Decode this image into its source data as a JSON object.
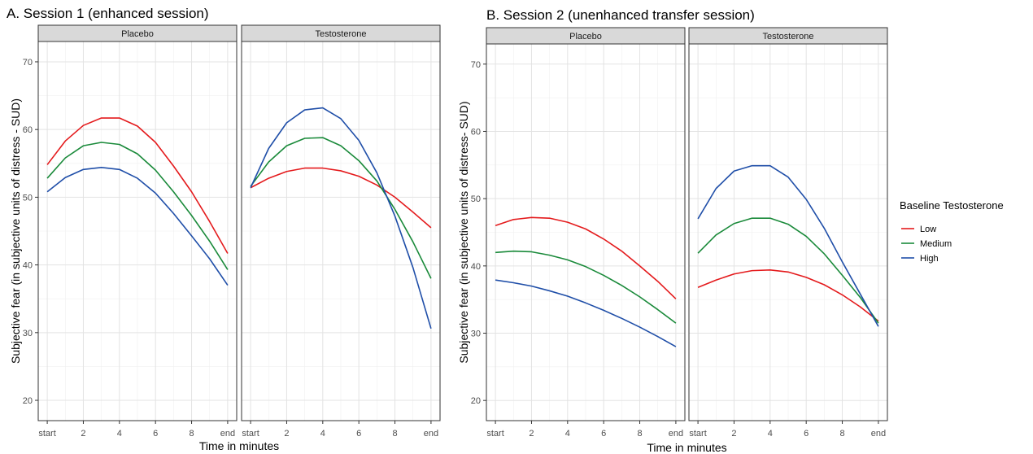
{
  "legend": {
    "title": "Baseline Testosterone",
    "placement": "right",
    "items": [
      {
        "label": "Low",
        "color": "#e41a1c"
      },
      {
        "label": "Medium",
        "color": "#1a8a3a"
      },
      {
        "label": "High",
        "color": "#1f4ea8"
      }
    ]
  },
  "chart_data": [
    {
      "type": "line",
      "title": "A. Session 1 (enhanced session)",
      "xlabel": "Time in minutes",
      "ylabel": "Subjective fear (in subjective units of distress - SUD)",
      "ylim": [
        17,
        73
      ],
      "yticks": [
        20,
        30,
        40,
        50,
        60,
        70
      ],
      "xlim": [
        -0.5,
        10.5
      ],
      "xticks": [
        0,
        2,
        4,
        6,
        8,
        10
      ],
      "xtick_labels": [
        "start",
        "2",
        "4",
        "6",
        "8",
        "end"
      ],
      "grid": true,
      "facets": [
        {
          "strip": "Placebo",
          "series": [
            {
              "name": "Low",
              "x": [
                0,
                1,
                2,
                3,
                4,
                5,
                6,
                7,
                8,
                9,
                10
              ],
              "y": [
                54.8,
                58.3,
                60.6,
                61.7,
                61.7,
                60.5,
                58.1,
                54.6,
                50.8,
                46.4,
                41.7
              ]
            },
            {
              "name": "Medium",
              "x": [
                0,
                1,
                2,
                3,
                4,
                5,
                6,
                7,
                8,
                9,
                10
              ],
              "y": [
                52.8,
                55.8,
                57.6,
                58.1,
                57.8,
                56.4,
                54.0,
                50.8,
                47.3,
                43.5,
                39.3
              ]
            },
            {
              "name": "High",
              "x": [
                0,
                1,
                2,
                3,
                4,
                5,
                6,
                7,
                8,
                9,
                10
              ],
              "y": [
                50.8,
                52.9,
                54.1,
                54.4,
                54.1,
                52.8,
                50.6,
                47.6,
                44.3,
                40.9,
                37.0
              ]
            }
          ]
        },
        {
          "strip": "Testosterone",
          "series": [
            {
              "name": "Low",
              "x": [
                0,
                1,
                2,
                3,
                4,
                5,
                6,
                7,
                8,
                9,
                10
              ],
              "y": [
                51.4,
                52.8,
                53.8,
                54.3,
                54.3,
                53.9,
                53.1,
                51.8,
                50.0,
                47.8,
                45.5
              ]
            },
            {
              "name": "Medium",
              "x": [
                0,
                1,
                2,
                3,
                4,
                5,
                6,
                7,
                8,
                9,
                10
              ],
              "y": [
                51.6,
                55.2,
                57.6,
                58.7,
                58.8,
                57.6,
                55.4,
                52.4,
                48.2,
                43.4,
                38.0
              ]
            },
            {
              "name": "High",
              "x": [
                0,
                1,
                2,
                3,
                4,
                5,
                6,
                7,
                8,
                9,
                10
              ],
              "y": [
                51.4,
                57.2,
                61.0,
                62.9,
                63.2,
                61.6,
                58.4,
                53.6,
                47.2,
                39.6,
                30.6
              ]
            }
          ]
        }
      ]
    },
    {
      "type": "line",
      "title": "B. Session 2 (unenhanced transfer session)",
      "xlabel": "Time in minutes",
      "ylabel": "Subjective fear (in subjective units of distress- SUD)",
      "ylim": [
        17,
        73
      ],
      "yticks": [
        20,
        30,
        40,
        50,
        60,
        70
      ],
      "xlim": [
        -0.5,
        10.5
      ],
      "xticks": [
        0,
        2,
        4,
        6,
        8,
        10
      ],
      "xtick_labels": [
        "start",
        "2",
        "4",
        "6",
        "8",
        "end"
      ],
      "grid": true,
      "facets": [
        {
          "strip": "Placebo",
          "series": [
            {
              "name": "Low",
              "x": [
                0,
                1,
                2,
                3,
                4,
                5,
                6,
                7,
                8,
                9,
                10
              ],
              "y": [
                46.0,
                46.9,
                47.2,
                47.1,
                46.5,
                45.5,
                44.0,
                42.2,
                40.0,
                37.7,
                35.1
              ]
            },
            {
              "name": "Medium",
              "x": [
                0,
                1,
                2,
                3,
                4,
                5,
                6,
                7,
                8,
                9,
                10
              ],
              "y": [
                42.0,
                42.2,
                42.1,
                41.6,
                40.9,
                39.9,
                38.6,
                37.1,
                35.4,
                33.5,
                31.5
              ]
            },
            {
              "name": "High",
              "x": [
                0,
                1,
                2,
                3,
                4,
                5,
                6,
                7,
                8,
                9,
                10
              ],
              "y": [
                37.9,
                37.5,
                37.0,
                36.3,
                35.5,
                34.5,
                33.4,
                32.2,
                30.9,
                29.5,
                28.0
              ]
            }
          ]
        },
        {
          "strip": "Testosterone",
          "series": [
            {
              "name": "Low",
              "x": [
                0,
                1,
                2,
                3,
                4,
                5,
                6,
                7,
                8,
                9,
                10
              ],
              "y": [
                36.8,
                37.9,
                38.8,
                39.3,
                39.4,
                39.1,
                38.3,
                37.2,
                35.7,
                33.9,
                31.8
              ]
            },
            {
              "name": "Medium",
              "x": [
                0,
                1,
                2,
                3,
                4,
                5,
                6,
                7,
                8,
                9,
                10
              ],
              "y": [
                41.9,
                44.6,
                46.3,
                47.1,
                47.1,
                46.2,
                44.4,
                41.8,
                38.6,
                35.3,
                31.5
              ]
            },
            {
              "name": "High",
              "x": [
                0,
                1,
                2,
                3,
                4,
                5,
                6,
                7,
                8,
                9,
                10
              ],
              "y": [
                47.0,
                51.5,
                54.1,
                54.9,
                54.9,
                53.2,
                49.9,
                45.6,
                40.6,
                35.8,
                31.0
              ]
            }
          ]
        }
      ]
    }
  ]
}
